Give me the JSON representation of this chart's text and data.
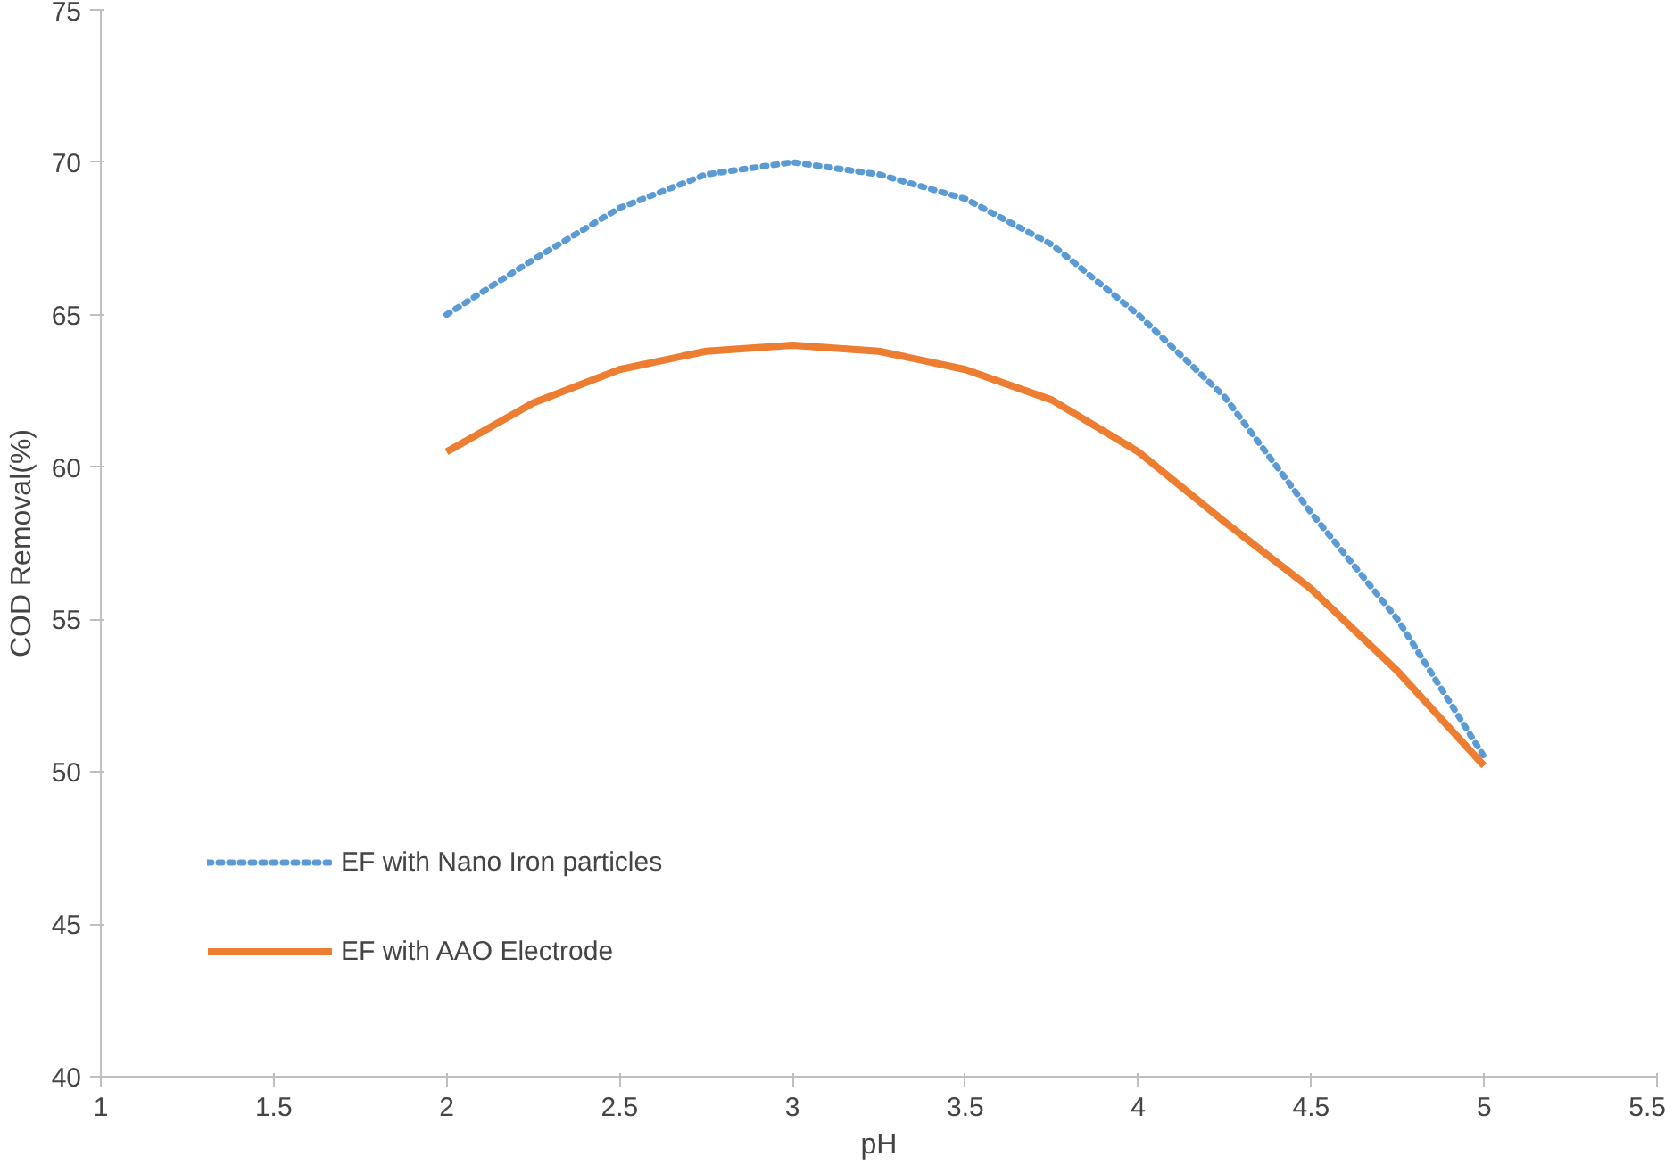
{
  "chart_data": {
    "type": "line",
    "xlabel": "pH",
    "ylabel": "COD Removal(%)",
    "x": [
      2,
      2.25,
      2.5,
      2.75,
      3,
      3.25,
      3.5,
      3.75,
      4,
      4.25,
      4.5,
      4.75,
      5
    ],
    "series": [
      {
        "name": "EF with Nano Iron particles",
        "color": "#5b9bd5",
        "line_style": "dotted",
        "values": [
          65,
          66.8,
          68.5,
          69.6,
          70,
          69.6,
          68.8,
          67.3,
          65,
          62.3,
          58.5,
          55,
          50.5
        ]
      },
      {
        "name": "EF with AAO Electrode",
        "color": "#ed7d31",
        "line_style": "solid",
        "values": [
          60.5,
          62.1,
          63.2,
          63.8,
          64,
          63.8,
          63.2,
          62.2,
          60.5,
          58.2,
          56,
          53.3,
          50.2
        ]
      }
    ],
    "xlim": [
      1,
      5.5
    ],
    "xticks": [
      1,
      1.5,
      2,
      2.5,
      3,
      3.5,
      4,
      4.5,
      5,
      5.5
    ],
    "ylim": [
      40,
      75
    ],
    "yticks": [
      40,
      45,
      50,
      55,
      60,
      65,
      70,
      75
    ],
    "grid": false,
    "legend": "bottom left"
  }
}
